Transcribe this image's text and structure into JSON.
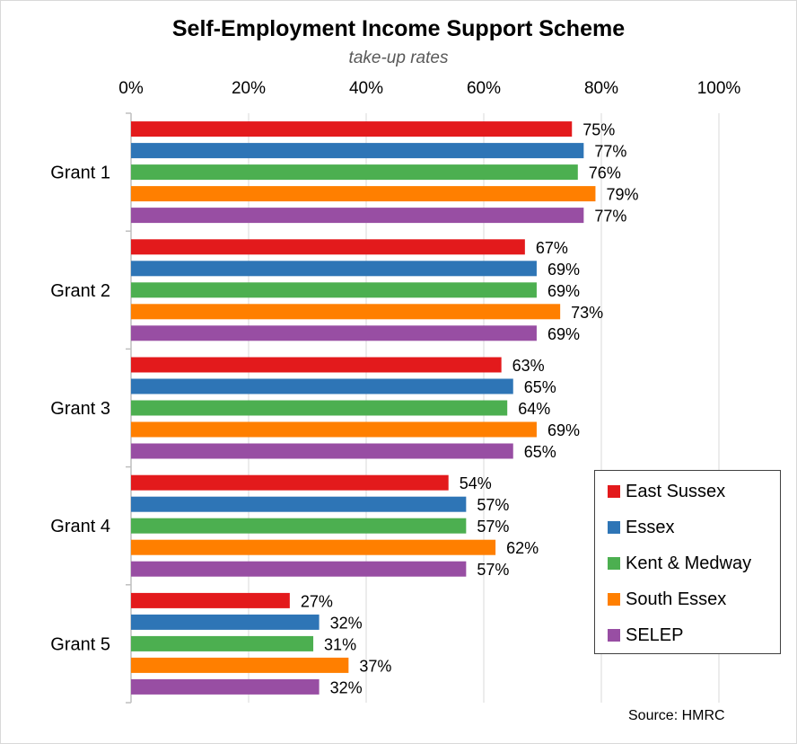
{
  "chart_data": {
    "type": "bar",
    "orientation": "horizontal",
    "title": "Self-Employment Income Support Scheme",
    "subtitle": "take-up rates",
    "categories": [
      "Grant 1",
      "Grant 2",
      "Grant 3",
      "Grant 4",
      "Grant 5"
    ],
    "series": [
      {
        "name": "East Sussex",
        "color": "#e31a1c",
        "values": [
          75,
          67,
          63,
          54,
          27
        ]
      },
      {
        "name": "Essex",
        "color": "#2e75b6",
        "values": [
          77,
          69,
          65,
          57,
          32
        ]
      },
      {
        "name": "Kent & Medway",
        "color": "#4caf50",
        "values": [
          76,
          69,
          64,
          57,
          31
        ]
      },
      {
        "name": "South Essex",
        "color": "#ff7f00",
        "values": [
          79,
          73,
          69,
          62,
          37
        ]
      },
      {
        "name": "SELEP",
        "color": "#984ea3",
        "values": [
          77,
          69,
          65,
          57,
          32
        ]
      }
    ],
    "x_ticks": [
      "0%",
      "20%",
      "40%",
      "60%",
      "80%",
      "100%"
    ],
    "xlim": [
      0,
      100
    ],
    "value_suffix": "%",
    "grid": true,
    "legend_position": "bottom-right",
    "source": "Source: HMRC"
  }
}
